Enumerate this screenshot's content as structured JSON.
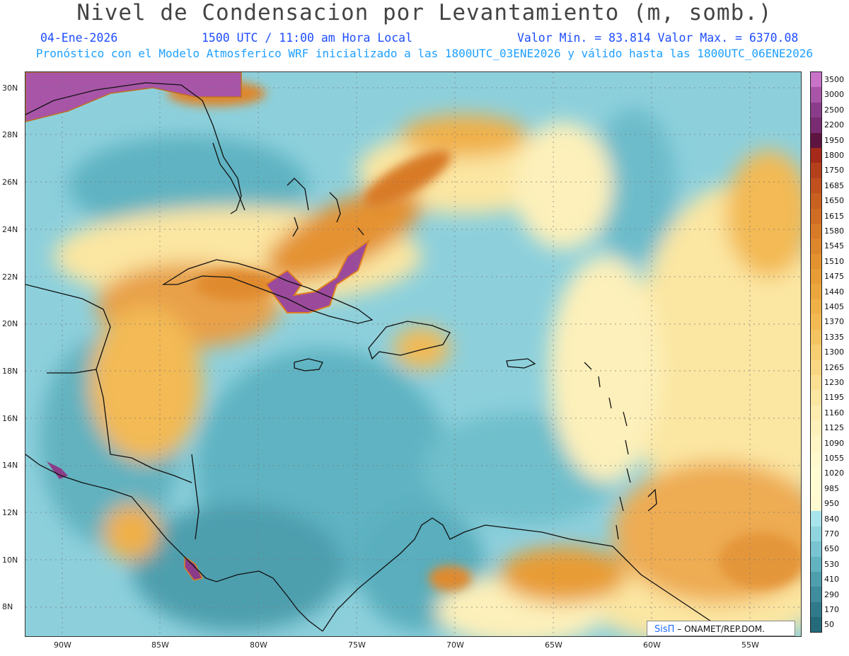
{
  "header": {
    "title": "Nivel de Condensacion por Levantamiento (m, somb.)",
    "date": "04-Ene-2026",
    "time": "1500 UTC / 11:00 am Hora Local",
    "minmax": "Valor Min. = 83.814  Valor Max. = 6370.08",
    "model_line": "Pronóstico con el Modelo Atmosferico WRF inicializado a las 1800UTC_03ENE2026 y válido hasta las  1800UTC_06ENE2026"
  },
  "map": {
    "lat_labels": [
      "30N",
      "28N",
      "26N",
      "24N",
      "22N",
      "20N",
      "18N",
      "16N",
      "14N",
      "12N",
      "10N",
      "8N"
    ],
    "lon_labels": [
      "90W",
      "85W",
      "80W",
      "75W",
      "70W",
      "65W",
      "60W",
      "55W"
    ],
    "credit_logo": "SisΠ",
    "credit_text": "– ONAMET/REP.DOM."
  },
  "colorbar": {
    "levels": [
      "3500",
      "3000",
      "2500",
      "2200",
      "1950",
      "1800",
      "1750",
      "1685",
      "1650",
      "1615",
      "1580",
      "1545",
      "1510",
      "1475",
      "1440",
      "1405",
      "1370",
      "1335",
      "1300",
      "1265",
      "1230",
      "1195",
      "1160",
      "1125",
      "1090",
      "1055",
      "1020",
      "985",
      "950",
      "840",
      "770",
      "650",
      "530",
      "410",
      "290",
      "170",
      "50"
    ],
    "colors": [
      "#c873c8",
      "#a855a8",
      "#8a3c8a",
      "#7a2c72",
      "#5e1440",
      "#a52a1a",
      "#b4401c",
      "#c0501e",
      "#c86020",
      "#d06c24",
      "#d87a28",
      "#de862c",
      "#e49230",
      "#e89c36",
      "#ecA63e",
      "#f0b048",
      "#f3ba54",
      "#f5c462",
      "#f7ce72",
      "#f8d682",
      "#fadf92",
      "#fbe6a2",
      "#fcecb0",
      "#fdf0ba",
      "#fef4c4",
      "#fff8cc",
      "#fffbd2",
      "#fffbd2",
      "#fffad0",
      "#a8e4ec",
      "#8fd4de",
      "#78c4d0",
      "#62b2c0",
      "#4e9fae",
      "#3f8c9c",
      "#2f7a8a",
      "#246a7a"
    ]
  }
}
